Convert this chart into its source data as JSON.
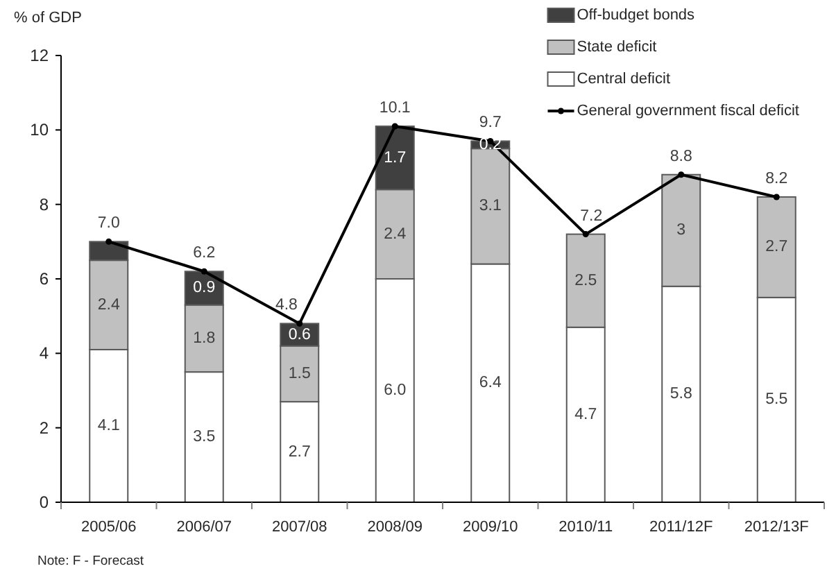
{
  "chart_data": {
    "type": "bar",
    "stacked": true,
    "ylabel": "% of GDP",
    "categories": [
      "2005/06",
      "2006/07",
      "2007/08",
      "2008/09",
      "2009/10",
      "2010/11",
      "2011/12F",
      "2012/13F"
    ],
    "series": [
      {
        "name": "Central deficit",
        "color": "#ffffff",
        "values": [
          4.1,
          3.5,
          2.7,
          6.0,
          6.4,
          4.7,
          5.8,
          5.5
        ],
        "value_labels": [
          "4.1",
          "3.5",
          "2.7",
          "6.0",
          "6.4",
          "4.7",
          "5.8",
          "5.5"
        ]
      },
      {
        "name": "State deficit",
        "color": "#c0c0c0",
        "values": [
          2.4,
          1.8,
          1.5,
          2.4,
          3.1,
          2.5,
          3,
          2.7
        ],
        "value_labels": [
          "2.4",
          "1.8",
          "1.5",
          "2.4",
          "3.1",
          "2.5",
          "3",
          "2.7"
        ]
      },
      {
        "name": "Off-budget bonds",
        "color": "#404040",
        "values": [
          0.5,
          0.9,
          0.6,
          1.7,
          0.2,
          null,
          null,
          null
        ],
        "value_labels": [
          null,
          "0.9",
          "0.6",
          "1.7",
          "0.2",
          null,
          null,
          null
        ]
      },
      {
        "name": "General government fiscal deficit",
        "type": "line",
        "color": "#000000",
        "values": [
          7.0,
          6.2,
          4.8,
          10.1,
          9.7,
          7.2,
          8.8,
          8.2
        ],
        "value_labels": [
          "7.0",
          "6.2",
          "4.8",
          "10.1",
          "9.7",
          "7.2",
          "8.8",
          "8.2"
        ]
      }
    ],
    "ylim": [
      0,
      12
    ],
    "yticks": [
      0,
      2,
      4,
      6,
      8,
      10,
      12
    ],
    "legend": "top right",
    "marker": "circle",
    "line_style": "solid",
    "annotations": [
      "Note: F - Forecast"
    ]
  }
}
